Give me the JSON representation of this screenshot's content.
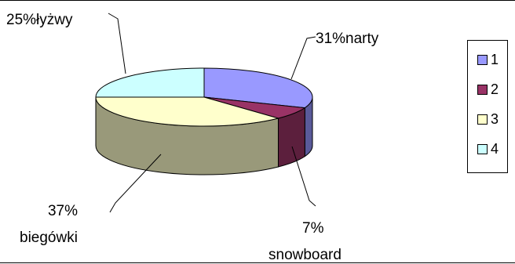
{
  "chart_data": {
    "type": "pie",
    "variant": "3d",
    "categories": [
      "narty",
      "snowboard",
      "biegówki",
      "łyżwy"
    ],
    "values": [
      31,
      7,
      37,
      25
    ],
    "legend_keys": [
      "1",
      "2",
      "3",
      "4"
    ],
    "colors": [
      "#9999ff",
      "#993366",
      "#ffffcc",
      "#ccffff"
    ],
    "side_colors": [
      "#5a5a9a",
      "#5c1f3d",
      "#99997a",
      "#7a9999"
    ],
    "data_labels": [
      {
        "pct": "31%",
        "name": "narty"
      },
      {
        "pct": "7%",
        "name": "snowboard"
      },
      {
        "pct": "37%",
        "name": "biegówki"
      },
      {
        "pct": "25%",
        "name": "łyżwy"
      }
    ],
    "legend_position": "right"
  }
}
